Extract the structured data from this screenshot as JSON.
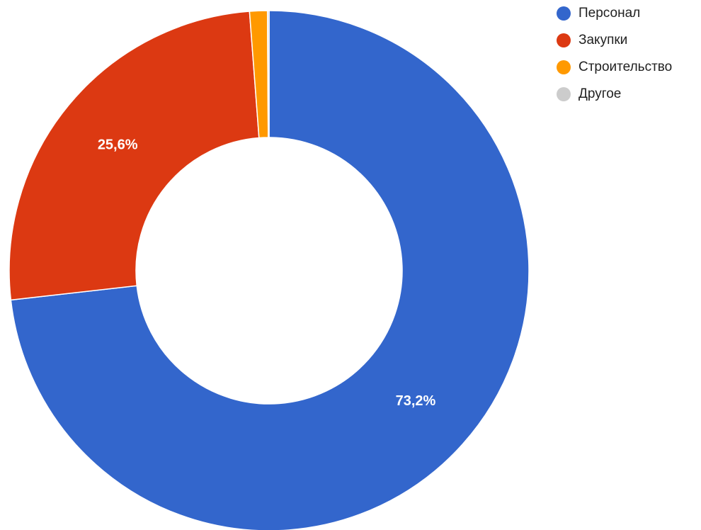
{
  "chart_data": {
    "type": "pie",
    "donut": true,
    "legend_position": "right",
    "series": [
      {
        "name": "Персонал",
        "value": 73.2,
        "label": "73,2%",
        "color": "#3366cc"
      },
      {
        "name": "Закупки",
        "value": 25.6,
        "label": "25,6%",
        "color": "#dc3912"
      },
      {
        "name": "Строительство",
        "value": 1.1,
        "label": "",
        "color": "#ff9900"
      },
      {
        "name": "Другое",
        "value": 0.1,
        "label": "",
        "color": "#cccccc"
      }
    ]
  }
}
